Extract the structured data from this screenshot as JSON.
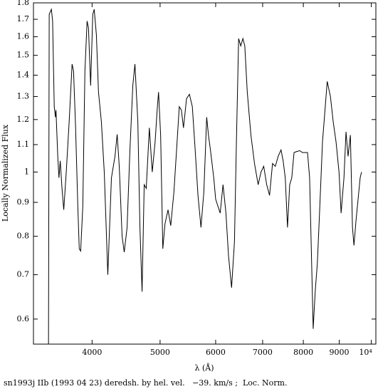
{
  "chart_data": {
    "type": "line",
    "xlabel": "λ (Å)",
    "ylabel": "Locally Normalized Flux",
    "caption": "sn1993j IIb (1993 04 23) deredsh. by hel. vel.   −39. km/s ;  Loc. Norm.",
    "xscale": "log",
    "yscale": "log",
    "xlim": [
      3300,
      10150
    ],
    "ylim": [
      0.55,
      1.8
    ],
    "xticks": [
      4000,
      5000,
      6000,
      7000,
      8000,
      9000,
      {
        "value": 10000,
        "label": "10⁴"
      }
    ],
    "yticks": [
      0.6,
      0.7,
      0.8,
      0.9,
      1,
      1.1,
      1.2,
      1.3,
      1.4,
      1.5,
      1.6,
      1.7,
      1.8
    ],
    "x": [
      3467,
      3475,
      3500,
      3514,
      3533,
      3547,
      3553,
      3574,
      3588,
      3603,
      3624,
      3645,
      3675,
      3710,
      3746,
      3764,
      3789,
      3817,
      3835,
      3853,
      3880,
      3907,
      3935,
      3953,
      3981,
      4009,
      4028,
      4057,
      4085,
      4124,
      4163,
      4212,
      4262,
      4312,
      4343,
      4373,
      4414,
      4445,
      4487,
      4529,
      4572,
      4604,
      4648,
      4680,
      4713,
      4746,
      4778,
      4827,
      4873,
      4919,
      4952,
      4975,
      5009,
      5045,
      5081,
      5132,
      5178,
      5232,
      5278,
      5325,
      5362,
      5399,
      5453,
      5505,
      5558,
      5610,
      5662,
      5718,
      5772,
      5826,
      5860,
      5898,
      5963,
      6000,
      6090,
      6147,
      6206,
      6259,
      6322,
      6382,
      6423,
      6470,
      6515,
      6561,
      6602,
      6656,
      6736,
      6816,
      6898,
      6963,
      7025,
      7094,
      7161,
      7231,
      7298,
      7366,
      7436,
      7487,
      7540,
      7595,
      7650,
      7702,
      7760,
      7830,
      7906,
      7979,
      8054,
      8111,
      8167,
      8226,
      8263,
      8318,
      8377,
      8437,
      8519,
      8597,
      8652,
      8744,
      8825,
      8907,
      8994,
      9056,
      9141,
      9203,
      9265,
      9336,
      9400,
      9446,
      9510,
      9575,
      9640,
      9684
    ],
    "series": [
      {
        "color": "#000000",
        "values": [
          0.55,
          1.73,
          1.76,
          1.69,
          1.255,
          1.21,
          1.24,
          1.056,
          0.98,
          1.04,
          0.945,
          0.877,
          1.0,
          1.19,
          1.455,
          1.42,
          1.17,
          0.888,
          0.766,
          0.76,
          0.888,
          1.42,
          1.69,
          1.65,
          1.35,
          1.73,
          1.76,
          1.61,
          1.32,
          1.19,
          1.0,
          0.7,
          0.98,
          1.056,
          1.14,
          1.02,
          0.8,
          0.757,
          0.825,
          1.08,
          1.35,
          1.455,
          1.19,
          0.825,
          0.66,
          0.957,
          0.945,
          1.166,
          1.0,
          1.11,
          1.24,
          1.32,
          1.137,
          0.766,
          0.835,
          0.877,
          0.83,
          0.933,
          1.08,
          1.255,
          1.24,
          1.166,
          1.29,
          1.31,
          1.255,
          1.08,
          0.922,
          0.825,
          0.933,
          1.21,
          1.137,
          1.08,
          0.98,
          0.91,
          0.867,
          0.957,
          0.867,
          0.747,
          0.669,
          0.785,
          1.11,
          1.59,
          1.55,
          1.59,
          1.55,
          1.32,
          1.137,
          1.03,
          0.957,
          1.0,
          1.02,
          0.957,
          0.922,
          1.03,
          1.02,
          1.056,
          1.08,
          1.04,
          0.98,
          0.825,
          0.957,
          0.98,
          1.07,
          1.074,
          1.077,
          1.07,
          1.07,
          1.07,
          0.98,
          0.71,
          0.58,
          0.66,
          0.729,
          0.867,
          1.11,
          1.255,
          1.37,
          1.3,
          1.19,
          1.11,
          1.0,
          0.867,
          0.98,
          1.15,
          1.056,
          1.137,
          0.825,
          0.775,
          0.845,
          0.91,
          0.98,
          1.0
        ]
      }
    ]
  }
}
